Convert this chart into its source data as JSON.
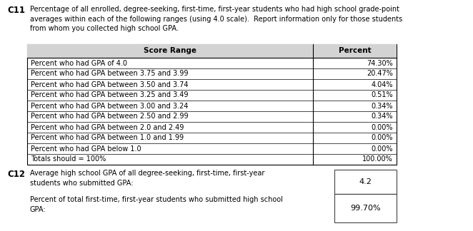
{
  "c11_label": "C11",
  "c11_text": "Percentage of all enrolled, degree-seeking, first-time, first-year students who had high school grade-point\naverages within each of the following ranges (using 4.0 scale).  Report information only for those students\nfrom whom you collected high school GPA.",
  "table_headers": [
    "Score Range",
    "Percent"
  ],
  "table_rows": [
    [
      "Percent who had GPA of 4.0",
      "74.30%"
    ],
    [
      "Percent who had GPA between 3.75 and 3.99",
      "20.47%"
    ],
    [
      "Percent who had GPA between 3.50 and 3.74",
      "4.04%"
    ],
    [
      "Percent who had GPA between 3.25 and 3.49",
      "0.51%"
    ],
    [
      "Percent who had GPA between 3.00 and 3.24",
      "0.34%"
    ],
    [
      "Percent who had GPA between 2.50 and 2.99",
      "0.34%"
    ],
    [
      "Percent who had GPA between 2.0 and 2.49",
      "0.00%"
    ],
    [
      "Percent who had GPA between 1.0 and 1.99",
      "0.00%"
    ],
    [
      "Percent who had GPA below 1.0",
      "0.00%"
    ],
    [
      "Totals should = 100%",
      "100.00%"
    ]
  ],
  "header_bg": "#d3d3d3",
  "c12_label": "C12",
  "c12_text1": "Average high school GPA of all degree-seeking, first-time, first-year\nstudents who submitted GPA:",
  "c12_val1": "4.2",
  "c12_text2": "Percent of total first-time, first-year students who submitted high school\nGPA:",
  "c12_val2": "99.70%",
  "font_size_body": 7.0,
  "font_size_header_cell": 7.5,
  "font_size_label": 8.5,
  "font_size_c12_box": 8.0,
  "bg_color": "#ffffff"
}
